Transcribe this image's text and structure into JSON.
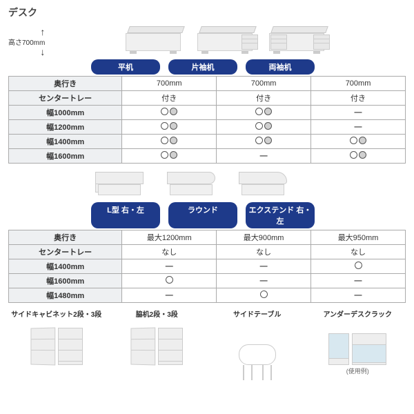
{
  "title": "デスク",
  "height_label": "高さ700mm",
  "arrow_up": "↑",
  "arrow_down": "↓",
  "section1": {
    "pills": [
      "平机",
      "片袖机",
      "両袖机"
    ],
    "rows": [
      {
        "label": "奥行き",
        "cells": [
          "700mm",
          "700mm",
          "700mm"
        ],
        "type": "text"
      },
      {
        "label": "センタートレー",
        "cells": [
          "付き",
          "付き",
          "付き"
        ],
        "type": "text"
      },
      {
        "label": "幅1000mm",
        "cells": [
          "oo-gray",
          "oo-gray",
          "dash"
        ],
        "type": "mark"
      },
      {
        "label": "幅1200mm",
        "cells": [
          "oo-gray",
          "oo-gray",
          "dash"
        ],
        "type": "mark"
      },
      {
        "label": "幅1400mm",
        "cells": [
          "oo-gray",
          "oo-gray",
          "oo-gray"
        ],
        "type": "mark"
      },
      {
        "label": "幅1600mm",
        "cells": [
          "oo-gray",
          "dash",
          "oo-gray"
        ],
        "type": "mark"
      }
    ]
  },
  "section2": {
    "pills": [
      "L型 右・左",
      "ラウンド",
      "エクステンド 右・左"
    ],
    "rows": [
      {
        "label": "奥行き",
        "cells": [
          "最大1200mm",
          "最大900mm",
          "最大950mm"
        ],
        "type": "text"
      },
      {
        "label": "センタートレー",
        "cells": [
          "なし",
          "なし",
          "なし"
        ],
        "type": "text"
      },
      {
        "label": "幅1400mm",
        "cells": [
          "dash",
          "dash",
          "o"
        ],
        "type": "mark"
      },
      {
        "label": "幅1600mm",
        "cells": [
          "o",
          "dash",
          "dash"
        ],
        "type": "mark"
      },
      {
        "label": "幅1480mm",
        "cells": [
          "dash",
          "o",
          "dash"
        ],
        "type": "mark"
      }
    ]
  },
  "bottom": [
    {
      "label": "サイドキャビネット2段・3段",
      "note": ""
    },
    {
      "label": "脇机2段・3段",
      "note": ""
    },
    {
      "label": "サイドテーブル",
      "note": ""
    },
    {
      "label": "アンダーデスクラック",
      "note": "(使用例)"
    }
  ],
  "colors": {
    "pill_bg": "#1e3a8a",
    "border": "#aaaaaa",
    "th_bg": "#eef0f2"
  }
}
